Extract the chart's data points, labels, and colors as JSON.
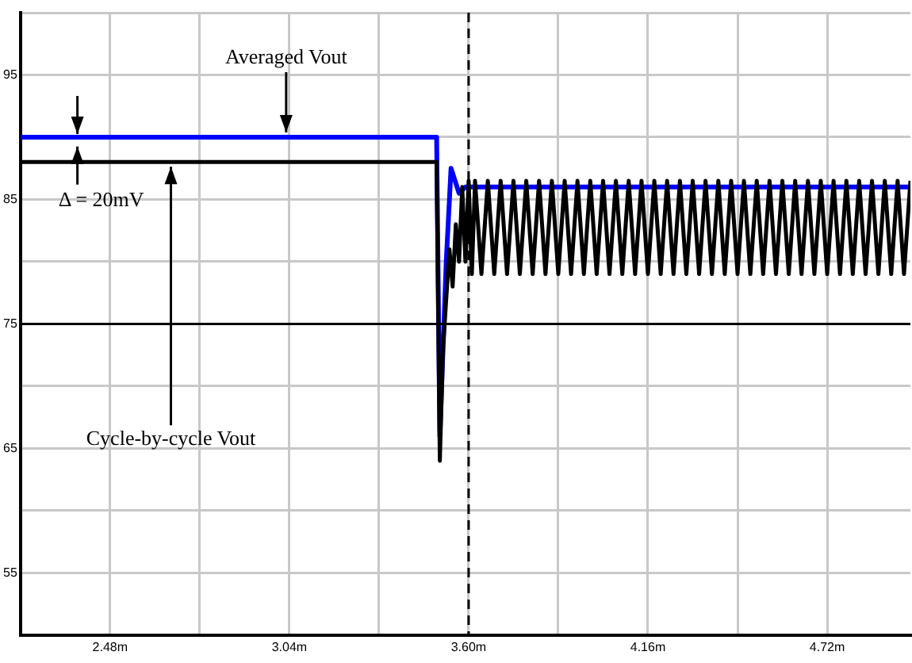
{
  "chart_data": {
    "type": "line",
    "xlim": [
      2.2,
      4.98
    ],
    "ylim": [
      50,
      100
    ],
    "xticks": [
      {
        "value": 2.2,
        "label": null
      },
      {
        "value": 2.48,
        "label": "2.48m"
      },
      {
        "value": 2.76,
        "label": null
      },
      {
        "value": 3.04,
        "label": "3.04m"
      },
      {
        "value": 3.32,
        "label": null
      },
      {
        "value": 3.6,
        "label": "3.60m"
      },
      {
        "value": 3.88,
        "label": null
      },
      {
        "value": 4.16,
        "label": "4.16m"
      },
      {
        "value": 4.44,
        "label": null
      },
      {
        "value": 4.72,
        "label": "4.72m"
      }
    ],
    "yticks": [
      {
        "value": 50,
        "label": null
      },
      55,
      {
        "value": 60,
        "label": null
      },
      65,
      {
        "value": 70,
        "label": null
      },
      75,
      {
        "value": 80,
        "label": null
      },
      85,
      {
        "value": 90,
        "label": null
      },
      95,
      {
        "value": 100,
        "label": null
      }
    ],
    "grid": true,
    "legend": false,
    "marker": "none",
    "line_style": "solid",
    "ref_lines": [
      {
        "axis": "y",
        "value": 75,
        "color": "#000000",
        "line_style": "solid"
      },
      {
        "axis": "x",
        "value": 3.6,
        "color": "#000000",
        "line_style": "dashed"
      }
    ],
    "annotations": [
      {
        "text": "Averaged Vout",
        "x": 3.03,
        "y": 90
      },
      "Δ = 20mV",
      {
        "text": "Cycle-by-cycle Vout",
        "x": 2.67,
        "y": 88
      }
    ],
    "series": [
      {
        "color": "#000000",
        "x": [
          2.2,
          3.5,
          3.51,
          3.52,
          3.53,
          3.54,
          3.55,
          3.56,
          3.57,
          3.58,
          3.59,
          3.6,
          3.61,
          3.62,
          3.64,
          3.66,
          3.68,
          3.7,
          3.72,
          3.74,
          3.76,
          3.78,
          3.8,
          3.82,
          3.84,
          3.86,
          3.88,
          3.9,
          3.92,
          3.94,
          3.96,
          3.98,
          4.0,
          4.02,
          4.04,
          4.06,
          4.08,
          4.1,
          4.12,
          4.14,
          4.16,
          4.18,
          4.2,
          4.22,
          4.24,
          4.26,
          4.28,
          4.3,
          4.32,
          4.34,
          4.36,
          4.38,
          4.4,
          4.42,
          4.44,
          4.46,
          4.48,
          4.5,
          4.52,
          4.54,
          4.56,
          4.58,
          4.6,
          4.62,
          4.64,
          4.66,
          4.68,
          4.7,
          4.72,
          4.74,
          4.76,
          4.78,
          4.8,
          4.82,
          4.84,
          4.86,
          4.88,
          4.9,
          4.92,
          4.94,
          4.96,
          4.98
        ],
        "values": [
          88,
          88,
          64,
          73,
          77,
          81,
          78,
          83,
          80,
          86,
          80,
          86.5,
          79,
          86.5,
          79,
          86.5,
          79,
          86.5,
          79,
          86.5,
          79,
          86.5,
          79,
          86.5,
          79,
          86.5,
          79,
          86.5,
          79,
          86.5,
          79,
          86.5,
          79,
          86.5,
          79,
          86.5,
          79,
          86.5,
          79,
          86.5,
          79,
          86.5,
          79,
          86.5,
          79,
          86.5,
          79,
          86.5,
          79,
          86.5,
          79,
          86.5,
          79,
          86.5,
          79,
          86.5,
          79,
          86.5,
          79,
          86.5,
          79,
          86.5,
          79,
          86.5,
          79,
          86.5,
          79,
          86.5,
          79,
          86.5,
          79,
          86.5,
          79,
          86.5,
          79,
          86.5,
          79,
          86.5,
          79,
          86.5,
          79,
          86.5
        ]
      },
      {
        "color": "#0000ff",
        "x": [
          2.2,
          3.5,
          3.51,
          3.53,
          3.545,
          3.57,
          3.59,
          3.62,
          4.98
        ],
        "values": [
          90,
          90,
          66,
          80,
          87.5,
          85.5,
          86,
          86,
          86
        ]
      }
    ]
  }
}
